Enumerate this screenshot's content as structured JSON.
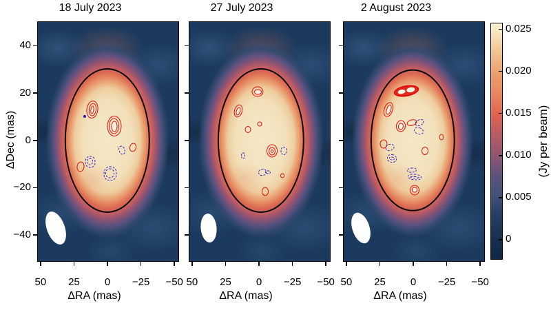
{
  "figure": {
    "ylabel": "ΔDec (mas)",
    "xlabel": "ΔRA (mas)",
    "colorbar_label": "(Jy per beam)",
    "background": "#ffffff"
  },
  "chart_data": {
    "type": "heatmap",
    "subtype": "radio-interferometry intensity maps with positive (red, solid) and negative (blue, dashed) contours, stellar disk outline and beam ellipse",
    "xlabel": "ΔRA (mas)",
    "ylabel": "ΔDec (mas)",
    "xlim": [
      52,
      -53
    ],
    "ylim": [
      -51,
      50
    ],
    "xticks": [
      50,
      25,
      0,
      -25,
      -50
    ],
    "yticks": [
      40,
      20,
      0,
      -20,
      -40
    ],
    "xtick_labels": [
      "50",
      "25",
      "0",
      "−25",
      "−50"
    ],
    "ytick_labels": [
      "40",
      "20",
      "0",
      "−20",
      "−40"
    ],
    "grid": false,
    "colorbar": {
      "label": "(Jy per beam)",
      "vmin": 0,
      "vmax": 0.025,
      "tick_values": [
        0.025,
        0.02,
        0.015,
        0.01,
        0.005,
        0
      ],
      "tick_labels": [
        "0.025",
        "0.020",
        "0.015",
        "0.010",
        "0.005",
        "0"
      ]
    },
    "colors": {
      "sky_background": "#1b3a5e",
      "disk_cream": "#f2e2c0",
      "halo_salmon": "#e2674f",
      "red_contour": "#e00f0f",
      "blue_contour": "#2a1dc9",
      "disk_outline": "#000000",
      "beam": "#ffffff"
    },
    "panels": [
      {
        "title": "18 July 2023",
        "disk": {
          "ra": 0,
          "dec": 0,
          "rx_mas": 31,
          "ry_mas": 30
        },
        "beam": {
          "ra": 38.5,
          "dec": -37,
          "w": 26,
          "h": 50,
          "rot": -20
        },
        "features": [
          {
            "k": "r",
            "ra": 11.5,
            "dec": 13,
            "w": 17,
            "h": 26,
            "rot": 8,
            "rings": 3,
            "core": "light"
          },
          {
            "k": "r",
            "ra": -5,
            "dec": 6,
            "w": 21,
            "h": 30,
            "rot": 0,
            "rings": 3,
            "core": "light"
          },
          {
            "k": "b",
            "ra": 17,
            "dec": 10,
            "w": 4,
            "h": 4,
            "rot": 0,
            "rings": 1
          },
          {
            "k": "b",
            "ra": -11,
            "dec": -4,
            "w": 9,
            "h": 13,
            "rot": -20,
            "rings": 1
          },
          {
            "k": "r",
            "ra": -19,
            "dec": -3,
            "w": 10,
            "h": 13,
            "rot": 15,
            "rings": 1
          },
          {
            "k": "b",
            "ra": 13,
            "dec": -9,
            "w": 15,
            "h": 17,
            "rot": 0,
            "rings": 2
          },
          {
            "k": "r",
            "ra": 20,
            "dec": -11,
            "w": 11,
            "h": 15,
            "rot": 10,
            "rings": 1
          },
          {
            "k": "b",
            "ra": -2,
            "dec": -14,
            "w": 19,
            "h": 21,
            "rot": 0,
            "rings": 2
          }
        ]
      },
      {
        "title": "27 July 2023",
        "disk": {
          "ra": -1.5,
          "dec": 0,
          "rx_mas": 31.5,
          "ry_mas": 30
        },
        "beam": {
          "ra": 37.5,
          "dec": -37,
          "w": 23,
          "h": 42,
          "rot": -5
        },
        "features": [
          {
            "k": "r",
            "ra": 1,
            "dec": 20.5,
            "w": 17,
            "h": 15,
            "rot": 0,
            "rings": 2,
            "core": "light"
          },
          {
            "k": "r",
            "ra": 15.5,
            "dec": 12.5,
            "w": 12,
            "h": 19,
            "rot": 15,
            "rings": 2,
            "core": "light"
          },
          {
            "k": "r",
            "ra": -0.5,
            "dec": 7,
            "w": 7,
            "h": 7,
            "rot": 0,
            "rings": 1
          },
          {
            "k": "r",
            "ra": 8,
            "dec": 4.5,
            "w": 9,
            "h": 10,
            "rot": 0,
            "rings": 1
          },
          {
            "k": "r",
            "ra": -10,
            "dec": -4.5,
            "w": 16,
            "h": 19,
            "rot": 0,
            "rings": 3,
            "core": "light"
          },
          {
            "k": "b",
            "ra": -18.5,
            "dec": -4.5,
            "w": 9,
            "h": 12,
            "rot": 0,
            "rings": 1
          },
          {
            "k": "b",
            "ra": 12,
            "dec": -6.5,
            "w": 6,
            "h": 9,
            "rot": 0,
            "rings": 1
          },
          {
            "k": "b",
            "ra": -2.5,
            "dec": -13.5,
            "w": 12,
            "h": 10,
            "rot": -10,
            "rings": 1
          },
          {
            "k": "b",
            "ra": -6.5,
            "dec": -13.5,
            "w": 8,
            "h": 5,
            "rot": 0,
            "rings": 1
          },
          {
            "k": "r",
            "ra": -17.5,
            "dec": -15,
            "w": 6,
            "h": 7,
            "rot": 0,
            "rings": 1
          },
          {
            "k": "r",
            "ra": -4.5,
            "dec": -21.5,
            "w": 10,
            "h": 13,
            "rot": 0,
            "rings": 1
          }
        ]
      },
      {
        "title": "2 August 2023",
        "disk": {
          "ra": 0.5,
          "dec": 0,
          "rx_mas": 30.5,
          "ry_mas": 29.5
        },
        "beam": {
          "ra": 39,
          "dec": -37,
          "w": 25,
          "h": 46,
          "rot": -18
        },
        "features": [
          {
            "k": "peanut",
            "ra": 5,
            "dec": 21,
            "w": 37,
            "h": 16,
            "rot": -10
          },
          {
            "k": "r",
            "ra": 18.5,
            "dec": 13,
            "w": 13,
            "h": 22,
            "rot": 18,
            "rings": 2,
            "core": "light"
          },
          {
            "k": "r",
            "ra": 9.5,
            "dec": 6,
            "w": 14,
            "h": 17,
            "rot": 8,
            "rings": 2,
            "core": "light"
          },
          {
            "k": "r",
            "ra": 1,
            "dec": 7.5,
            "w": 15,
            "h": 9,
            "rot": -15,
            "rings": 1
          },
          {
            "k": "b",
            "ra": -4.5,
            "dec": 7.5,
            "w": 13,
            "h": 9,
            "rot": -25,
            "rings": 1
          },
          {
            "k": "b",
            "ra": -4,
            "dec": 4,
            "w": 14,
            "h": 10,
            "rot": 20,
            "rings": 1
          },
          {
            "k": "r",
            "ra": -21,
            "dec": 1.5,
            "w": 7,
            "h": 9,
            "rot": 0,
            "rings": 1
          },
          {
            "k": "r",
            "ra": 22,
            "dec": -1.5,
            "w": 11,
            "h": 13,
            "rot": 0,
            "rings": 1
          },
          {
            "k": "b",
            "ra": 17.5,
            "dec": -3,
            "w": 13,
            "h": 10,
            "rot": -15,
            "rings": 1
          },
          {
            "k": "b",
            "ra": 16,
            "dec": -7.5,
            "w": 14,
            "h": 12,
            "rot": 10,
            "rings": 2
          },
          {
            "k": "r",
            "ra": -8.5,
            "dec": -4.5,
            "w": 10,
            "h": 12,
            "rot": 0,
            "rings": 1
          },
          {
            "k": "b",
            "ra": 1,
            "dec": -12.5,
            "w": 14,
            "h": 7,
            "rot": -5,
            "rings": 1
          },
          {
            "k": "b",
            "ra": -1,
            "dec": -15.5,
            "w": 20,
            "h": 9,
            "rot": 5,
            "rings": 2
          },
          {
            "k": "r",
            "ra": -1,
            "dec": -21,
            "w": 14,
            "h": 15,
            "rot": 0,
            "rings": 2,
            "core": "light"
          }
        ]
      }
    ]
  }
}
